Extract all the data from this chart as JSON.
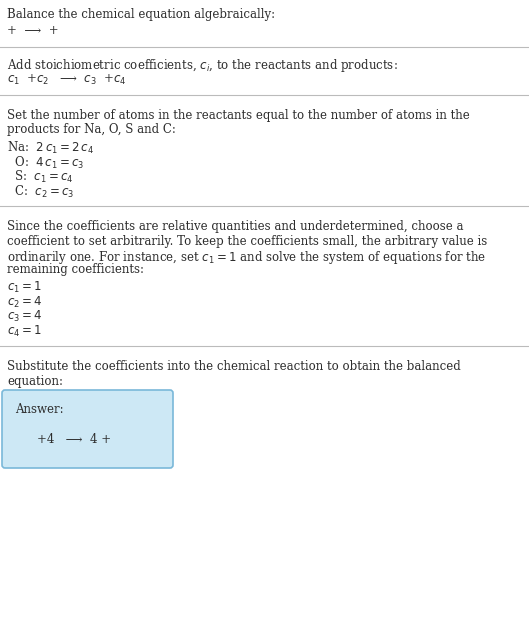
{
  "title": "Balance the chemical equation algebraically:",
  "section1_eq": "+  ⟶  +",
  "section2_header": "Add stoichiometric coefficients, $c_i$, to the reactants and products:",
  "section2_eq": "$c_1$  +$c_2$   ⟶  $c_3$  +$c_4$",
  "section3_header_lines": [
    "Set the number of atoms in the reactants equal to the number of atoms in the",
    "products for Na, O, S and C:"
  ],
  "section3_eqs": [
    "Na:  $2\\,c_1 = 2\\,c_4$",
    "  O:  $4\\,c_1 = c_3$",
    "  S:  $c_1 = c_4$",
    "  C:  $c_2 = c_3$"
  ],
  "section4_header_lines": [
    "Since the coefficients are relative quantities and underdetermined, choose a",
    "coefficient to set arbitrarily. To keep the coefficients small, the arbitrary value is",
    "ordinarily one. For instance, set $c_1 = 1$ and solve the system of equations for the",
    "remaining coefficients:"
  ],
  "section4_eqs": [
    "$c_1 = 1$",
    "$c_2 = 4$",
    "$c_3 = 4$",
    "$c_4 = 1$"
  ],
  "section5_header_lines": [
    "Substitute the coefficients into the chemical reaction to obtain the balanced",
    "equation:"
  ],
  "answer_label": "Answer:",
  "answer_eq": "+4   ⟶  4 +",
  "bg_color": "#ffffff",
  "text_color": "#2d2d2d",
  "line_color": "#bbbbbb",
  "answer_box_facecolor": "#cde8f5",
  "answer_box_edgecolor": "#7ab8d9"
}
